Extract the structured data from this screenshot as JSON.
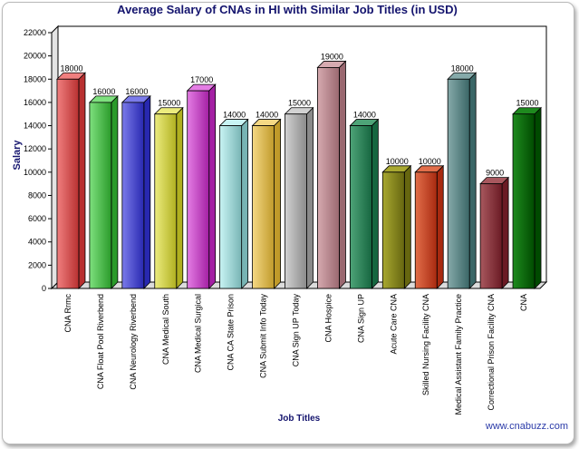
{
  "chart_data": {
    "type": "bar",
    "title": "Average Salary of CNAs in HI with Similar Job Titles (in USD)",
    "xlabel": "Job Titles",
    "ylabel": "Salary",
    "ylim": [
      0,
      22000
    ],
    "y_ticks": [
      0,
      2000,
      4000,
      6000,
      8000,
      10000,
      12000,
      14000,
      16000,
      18000,
      20000,
      22000
    ],
    "grid": false,
    "categories": [
      "CNA Rrmc",
      "CNA Float Pool Riverbend",
      "CNA Neurology Riverbend",
      "CNA Medical South",
      "CNA Medical Surgical",
      "CNA CA State Prison",
      "CNA Submit Info Today",
      "CNA Sign UP Today",
      "CNA Hospice",
      "CNA Sign UP",
      "Acute Care CNA",
      "Skilled Nursing Facility CNA",
      "Medical Assistant Family Practice",
      "Correctional Prison Facility CNA",
      "CNA"
    ],
    "values": [
      18000,
      16000,
      16000,
      15000,
      17000,
      14000,
      14000,
      15000,
      19000,
      14000,
      10000,
      10000,
      18000,
      9000,
      15000
    ],
    "bar_colors": [
      "#f07f7f",
      "#7ee07e",
      "#7b7bea",
      "#ecec7e",
      "#e47de4",
      "#c8f4f4",
      "#f4d884",
      "#d2d2d2",
      "#d6aab0",
      "#4ea478",
      "#a8a830",
      "#e26e4a",
      "#86aaaa",
      "#a8585e",
      "#1e8a1e"
    ],
    "bar_colors_dark": [
      "#b83030",
      "#2a9a2a",
      "#2828b0",
      "#b0b020",
      "#a420a4",
      "#78b4b4",
      "#c09a2a",
      "#8a8a8a",
      "#9a6870",
      "#166640",
      "#666610",
      "#a82a10",
      "#3a6666",
      "#6a1a24",
      "#004a00"
    ],
    "watermark": "www.cnabuzz.com"
  }
}
